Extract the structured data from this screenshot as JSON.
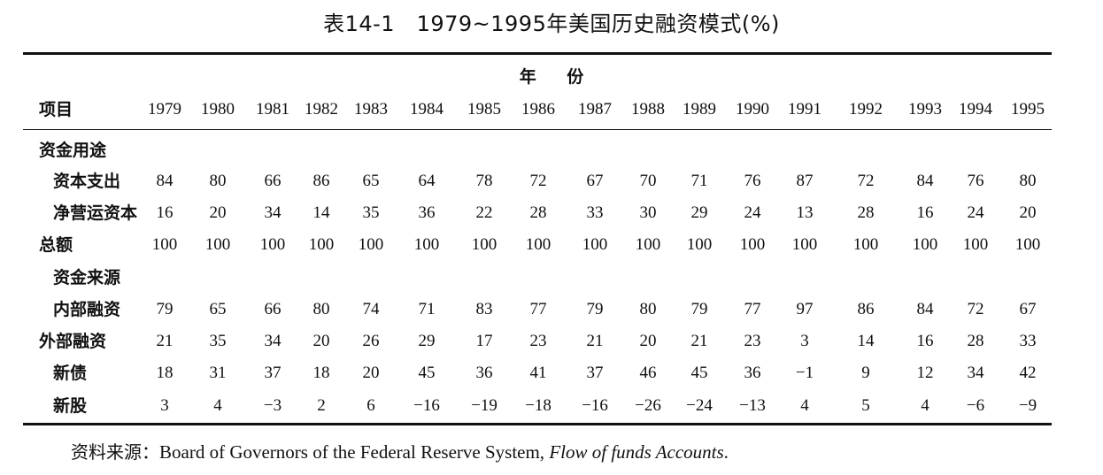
{
  "title": "表14-1　1979~1995年美国历史融资模式(%)",
  "group_header": "年 份",
  "header": {
    "label": "项目",
    "years": [
      "1979",
      "1980",
      "1981",
      "1982",
      "1983",
      "1984",
      "1985",
      "1986",
      "1987",
      "1988",
      "1989",
      "1990",
      "1991",
      "1992",
      "1993",
      "1994",
      "1995"
    ]
  },
  "rows": [
    {
      "label": "资金用途",
      "values": []
    },
    {
      "label": "资本支出",
      "values": [
        "84",
        "80",
        "66",
        "86",
        "65",
        "64",
        "78",
        "72",
        "67",
        "70",
        "71",
        "76",
        "87",
        "72",
        "84",
        "76",
        "80"
      ]
    },
    {
      "label": "净营运资本",
      "values": [
        "16",
        "20",
        "34",
        "14",
        "35",
        "36",
        "22",
        "28",
        "33",
        "30",
        "29",
        "24",
        "13",
        "28",
        "16",
        "24",
        "20"
      ]
    },
    {
      "label": "总额",
      "values": [
        "100",
        "100",
        "100",
        "100",
        "100",
        "100",
        "100",
        "100",
        "100",
        "100",
        "100",
        "100",
        "100",
        "100",
        "100",
        "100",
        "100"
      ]
    },
    {
      "label": "资金来源",
      "values": []
    },
    {
      "label": "内部融资",
      "values": [
        "79",
        "65",
        "66",
        "80",
        "74",
        "71",
        "83",
        "77",
        "79",
        "80",
        "79",
        "77",
        "97",
        "86",
        "84",
        "72",
        "67"
      ]
    },
    {
      "label": "外部融资",
      "values": [
        "21",
        "35",
        "34",
        "20",
        "26",
        "29",
        "17",
        "23",
        "21",
        "20",
        "21",
        "23",
        "3",
        "14",
        "16",
        "28",
        "33"
      ]
    },
    {
      "label": "新债",
      "values": [
        "18",
        "31",
        "37",
        "18",
        "20",
        "45",
        "36",
        "41",
        "37",
        "46",
        "45",
        "36",
        "-1",
        "9",
        "12",
        "34",
        "42"
      ]
    },
    {
      "label": "新股",
      "values": [
        "3",
        "4",
        "-3",
        "2",
        "6",
        "-16",
        "-19",
        "-18",
        "-16",
        "-26",
        "-24",
        "-13",
        "4",
        "5",
        "4",
        "-6",
        "-9"
      ]
    }
  ],
  "source": {
    "prefix": "资料来源：",
    "text": "Board of Governors of the Federal Reserve System, ",
    "italic": "Flow of funds Accounts",
    "suffix": "."
  }
}
